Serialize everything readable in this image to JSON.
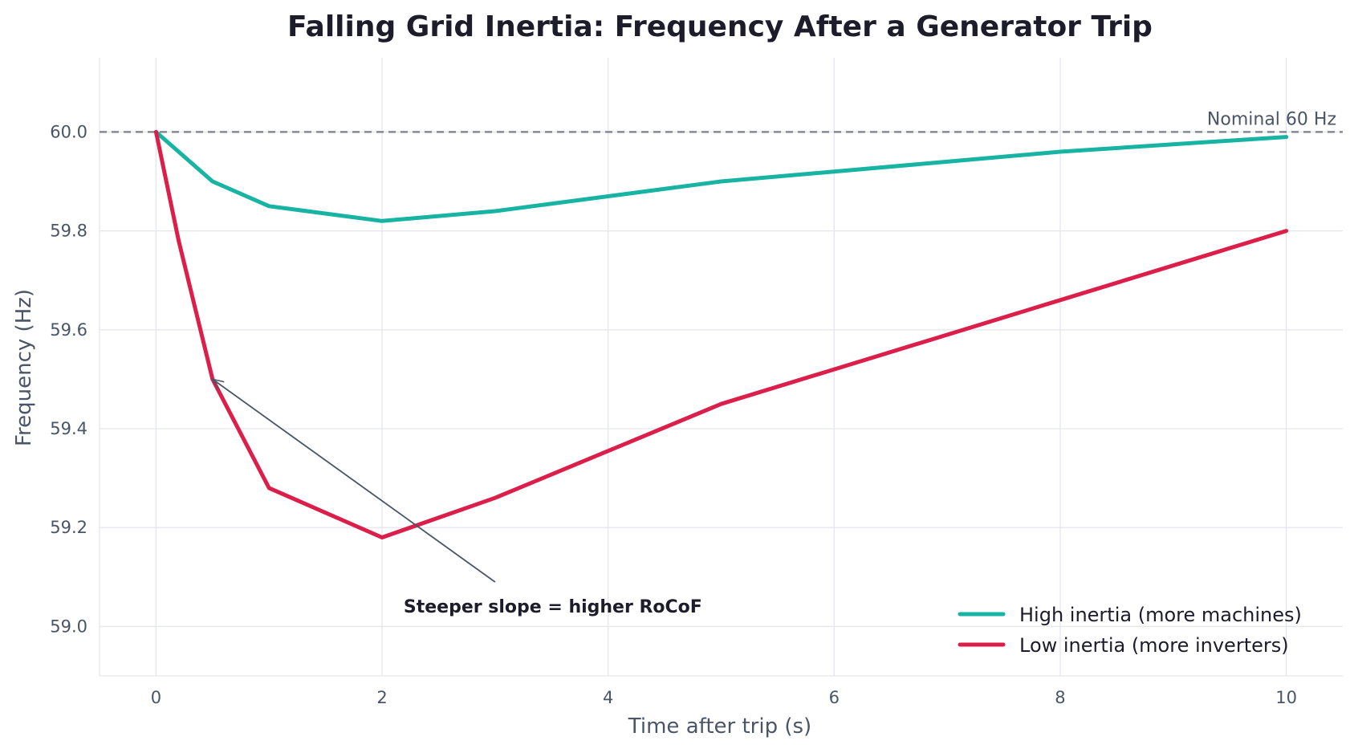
{
  "chart_data": {
    "type": "line",
    "title": "Falling Grid Inertia: Frequency After a Generator Trip",
    "xlabel": "Time after trip (s)",
    "ylabel": "Frequency (Hz)",
    "xlim": [
      -0.5,
      10.5
    ],
    "ylim": [
      58.9,
      60.15
    ],
    "xticks": [
      0,
      2,
      4,
      6,
      8,
      10
    ],
    "xtick_labels": [
      "0",
      "2",
      "4",
      "6",
      "8",
      "10"
    ],
    "yticks": [
      59.0,
      59.2,
      59.4,
      59.6,
      59.8,
      60.0
    ],
    "ytick_labels": [
      "59.0",
      "59.2",
      "59.4",
      "59.6",
      "59.8",
      "60.0"
    ],
    "grid": true,
    "legend_position": "bottom-right",
    "series": [
      {
        "name": "High inertia (more machines)",
        "color": "#17b3a3",
        "x": [
          0,
          0.5,
          1,
          2,
          3,
          4,
          5,
          6,
          7,
          8,
          9,
          10
        ],
        "y": [
          60.0,
          59.9,
          59.85,
          59.82,
          59.84,
          59.87,
          59.9,
          59.92,
          59.94,
          59.96,
          59.975,
          59.99
        ]
      },
      {
        "name": "Low inertia (more inverters)",
        "color": "#dc1f4a",
        "x": [
          0,
          0.2,
          0.5,
          1,
          2,
          3,
          4,
          5,
          6,
          7,
          8,
          9,
          10
        ],
        "y": [
          60.0,
          59.78,
          59.5,
          59.28,
          59.18,
          59.26,
          59.355,
          59.45,
          59.52,
          59.59,
          59.66,
          59.73,
          59.8
        ]
      }
    ],
    "reference_line": {
      "y": 60.0,
      "label": "Nominal 60 Hz",
      "color": "#7a7f8c"
    },
    "annotation": {
      "text": "Steeper slope = higher RoCoF",
      "point": [
        0.5,
        59.5
      ],
      "text_at": [
        3.0,
        59.09
      ]
    }
  }
}
